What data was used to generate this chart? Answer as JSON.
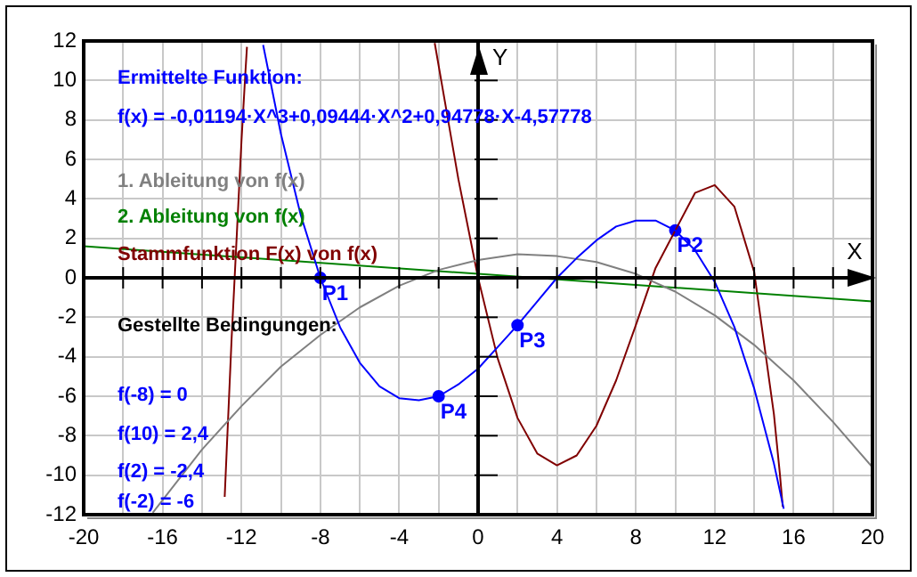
{
  "chart_data": {
    "type": "line",
    "xlabel": "X",
    "ylabel": "Y",
    "xlim": [
      -20,
      20
    ],
    "xticks": [
      -20,
      {
        "value": -18,
        "label": null
      },
      -16,
      {
        "value": -14,
        "label": null
      },
      -12,
      {
        "value": -10,
        "label": null
      },
      -8,
      {
        "value": -6,
        "label": null
      },
      -4,
      {
        "value": -2,
        "label": null
      },
      0,
      {
        "value": 2,
        "label": null
      },
      4,
      {
        "value": 6,
        "label": null
      },
      8,
      {
        "value": 10,
        "label": null
      },
      12,
      {
        "value": 14,
        "label": null
      },
      16,
      {
        "value": 18,
        "label": null
      },
      20
    ],
    "ylim": [
      -12,
      12
    ],
    "yticks": [
      -12,
      -10,
      -8,
      -6,
      -4,
      -2,
      0,
      2,
      4,
      6,
      8,
      10,
      12
    ],
    "grid": true,
    "legend": "top left",
    "series": [
      {
        "color": "#0000ff",
        "x": [
          -10.9,
          -10,
          -9,
          -8,
          -7,
          -6,
          -5,
          -4,
          -3,
          -2,
          -1,
          0,
          1,
          2,
          3,
          4,
          5,
          6,
          7,
          8,
          9,
          10,
          11,
          12,
          13,
          14,
          15,
          15.5
        ],
        "values": [
          11.8,
          7.3,
          3.2,
          0,
          -2.5,
          -4.3,
          -5.5,
          -6.1,
          -6.2,
          -6,
          -5.4,
          -4.6,
          -3.5,
          -2.4,
          -1.2,
          0,
          1,
          1.9,
          2.6,
          2.9,
          2.9,
          2.4,
          1.4,
          -0.2,
          -2.5,
          -5.6,
          -9.4,
          -11.7
        ]
      },
      {
        "name": "1. Ableitung von f(x)",
        "color": "#808080",
        "x": [
          -16.5,
          -14,
          -12,
          -10,
          -8,
          -6,
          -4,
          -2,
          0,
          2,
          4,
          6,
          8,
          10,
          12,
          14,
          16,
          18,
          20
        ],
        "values": [
          -11.9,
          -8.7,
          -6.5,
          -4.5,
          -2.9,
          -1.5,
          -0.4,
          0.4,
          0.9,
          1.2,
          1.1,
          0.8,
          0.2,
          -0.7,
          -1.9,
          -3.4,
          -5.2,
          -7.3,
          -9.6
        ]
      },
      {
        "name": "2. Ableitung von f(x)",
        "color": "#008000",
        "x": [
          -20,
          0,
          20
        ],
        "values": [
          1.6,
          0.2,
          -1.2
        ]
      },
      {
        "name": "Stammfunktion F(x) von f(x)",
        "color": "#800000",
        "x": [
          -12.85,
          -12.5,
          -12,
          -11.8,
          -11.72,
          -7,
          -2.2,
          -1,
          0,
          1,
          2,
          3,
          4,
          5,
          6,
          7,
          8,
          9,
          10,
          11,
          12,
          13,
          14,
          15,
          15.3,
          15.45
        ],
        "values": [
          -11.1,
          -3.1,
          6.9,
          10.4,
          11.7,
          null,
          11.9,
          5,
          0,
          -4.1,
          -7.1,
          -8.9,
          -9.5,
          -9,
          -7.5,
          -5.2,
          -2.4,
          0.5,
          2.4,
          4.3,
          4.7,
          3.6,
          0.3,
          -6.9,
          -9.9,
          -11.6
        ]
      },
      {
        "type": "scatter",
        "marker": "circle",
        "color": "#0000ff",
        "x": [
          -8,
          10,
          2,
          -2
        ],
        "values": [
          0,
          2.4,
          -2.4,
          -6
        ]
      }
    ],
    "annotations": [
      "Ermittelte Funktion:",
      "f(x) = -0,01194·X^3+0,09444·X^2+0,94778·X-4,57778",
      "Gestellte Bedingungen:",
      "f(-8) = 0",
      "f(10) = 2,4",
      "f(2) = -2,4",
      "f(-2) = -6",
      {
        "text": "P1",
        "x": -8,
        "y": 0
      },
      {
        "text": "P2",
        "x": 10,
        "y": 2.4
      },
      {
        "text": "P3",
        "x": 2,
        "y": -2.4
      },
      {
        "text": "P4",
        "x": -2,
        "y": -6
      }
    ]
  }
}
